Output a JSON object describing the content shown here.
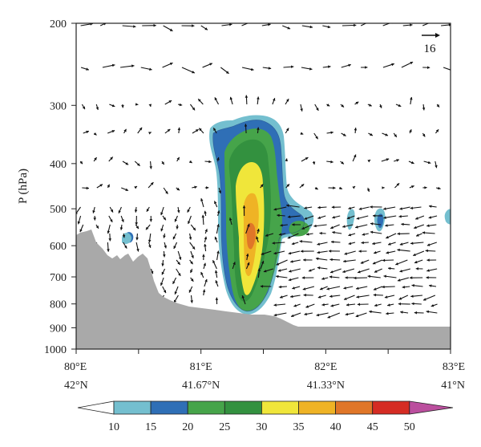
{
  "chart_data": {
    "type": "contour-vector",
    "ylabel": "P (hPa)",
    "y_scale": "log",
    "ylim": [
      1000,
      200
    ],
    "y_ticks": [
      "200",
      "300",
      "400",
      "500",
      "600",
      "700",
      "800",
      "900",
      "1000"
    ],
    "y_tick_values": [
      200,
      300,
      400,
      500,
      600,
      700,
      800,
      900,
      1000
    ],
    "x_ticks": [
      {
        "lon": "80°E",
        "lat": "42°N"
      },
      {
        "lon": "81°E",
        "lat": "41.67°N"
      },
      {
        "lon": "82°E",
        "lat": "41.33°N"
      },
      {
        "lon": "83°E",
        "lat": "41°N"
      }
    ],
    "xlim": [
      80,
      83
    ],
    "reference_vector": "16",
    "colorbar": {
      "levels": [
        "10",
        "15",
        "20",
        "25",
        "30",
        "35",
        "40",
        "45",
        "50"
      ],
      "colors": [
        "#ffffff",
        "#74bfcf",
        "#2f6fb6",
        "#46a44a",
        "#33913f",
        "#f0e63a",
        "#efb325",
        "#e07628",
        "#d52c23",
        "#bb4f9e"
      ]
    },
    "terrain_color": "#a9a9a9"
  }
}
